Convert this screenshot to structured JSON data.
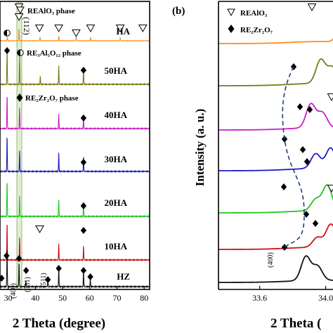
{
  "chart_data": [
    {
      "panel": "",
      "type": "line",
      "xlabel": "2 Theta (degree)",
      "ylabel": "",
      "xlim": [
        27,
        82
      ],
      "xticks": [
        30,
        40,
        50,
        60,
        70,
        80
      ],
      "x": [
        28,
        29.6,
        34.2,
        35.9,
        41.7,
        48.6,
        57.7,
        60.2,
        69.5,
        71.6,
        79.2
      ],
      "series": [
        {
          "name": "HA",
          "color": "#ff8c1a",
          "peaks": [
            [
              29.7,
              0.25
            ],
            [
              34.0,
              0.8
            ],
            [
              41.7,
              0.25
            ],
            [
              48.6,
              0.3
            ],
            [
              55.0,
              0.25
            ],
            [
              60.3,
              0.25
            ],
            [
              71.2,
              0.2
            ]
          ]
        },
        {
          "name": "50HA",
          "color": "#7a7a16",
          "peaks": [
            [
              29.6,
              0.9
            ],
            [
              34.2,
              0.7
            ],
            [
              41.8,
              0.2
            ],
            [
              48.6,
              0.45
            ],
            [
              57.7,
              0.4
            ]
          ]
        },
        {
          "name": "40HA",
          "color": "#c71fc7",
          "peaks": [
            [
              29.6,
              0.85
            ],
            [
              34.2,
              0.5
            ],
            [
              48.6,
              0.35
            ],
            [
              57.7,
              0.3
            ]
          ]
        },
        {
          "name": "30HA",
          "color": "#1d1dbf",
          "peaks": [
            [
              29.6,
              0.9
            ],
            [
              34.2,
              0.5
            ],
            [
              48.6,
              0.45
            ],
            [
              57.7,
              0.35
            ]
          ]
        },
        {
          "name": "20HA",
          "color": "#1fc71f",
          "peaks": [
            [
              29.6,
              0.9
            ],
            [
              34.2,
              0.5
            ],
            [
              48.6,
              0.4
            ],
            [
              57.7,
              0.35
            ]
          ]
        },
        {
          "name": "10HA",
          "color": "#cc1111",
          "peaks": [
            [
              29.6,
              0.95
            ],
            [
              34.2,
              0.55
            ],
            [
              48.6,
              0.4
            ],
            [
              57.7,
              0.35
            ]
          ]
        },
        {
          "name": "HZ",
          "color": "#111111",
          "peaks": [
            [
              29.6,
              0.95
            ],
            [
              34.0,
              0.6
            ],
            [
              36.5,
              0.15
            ],
            [
              44.6,
              0.2
            ],
            [
              48.6,
              0.45
            ],
            [
              57.7,
              0.4
            ],
            [
              60.2,
              0.2
            ]
          ]
        }
      ],
      "annotations": {
        "realo3_phase": "REAlO₃ phase",
        "re3al5_phase": "RE₃Al₅O₁₂ phase",
        "re2zr2o7_phase": "RE₂Zr₂O₇ phase",
        "hkl_112": "(112)",
        "hkl_400": "(400)",
        "hkl_331": "(331)",
        "hkl_511": "(511)"
      },
      "highlight_band": [
        33.2,
        35.0
      ]
    },
    {
      "panel": "(b)",
      "type": "line",
      "xlabel": "2 Theta (",
      "ylabel": "Intensity (a. u.)",
      "xlim": [
        33.35,
        34.35
      ],
      "xticks": [
        33.6,
        34.0
      ],
      "legend": [
        "REAlO₃",
        "RE₂Zr₂O₇"
      ],
      "series": [
        {
          "name": "HA",
          "color": "#ff8c1a",
          "peaks": [
            [
              34.1,
              0.7
            ],
            [
              34.25,
              0.4
            ]
          ]
        },
        {
          "name": "50HA",
          "color": "#7a7a16",
          "peaks": [
            [
              33.97,
              0.8
            ],
            [
              34.04,
              0.55
            ]
          ]
        },
        {
          "name": "40HA",
          "color": "#c71fc7",
          "peaks": [
            [
              33.91,
              0.8
            ],
            [
              33.98,
              0.5
            ],
            [
              34.18,
              0.3
            ]
          ]
        },
        {
          "name": "30HA",
          "color": "#1d1dbf",
          "peaks": [
            [
              33.94,
              0.5
            ],
            [
              34.03,
              0.7
            ]
          ]
        },
        {
          "name": "20HA",
          "color": "#1fc71f",
          "peaks": [
            [
              33.94,
              0.4
            ],
            [
              34.01,
              0.9
            ],
            [
              34.16,
              0.35
            ]
          ]
        },
        {
          "name": "10HA",
          "color": "#cc1111",
          "peaks": [
            [
              33.95,
              0.35
            ],
            [
              34.03,
              0.8
            ],
            [
              34.1,
              0.45
            ]
          ]
        },
        {
          "name": "HZ",
          "color": "#111111",
          "peaks": [
            [
              33.88,
              0.85
            ],
            [
              33.95,
              0.5
            ]
          ]
        }
      ],
      "annotations": {
        "hkl_400": "(400)"
      }
    }
  ]
}
